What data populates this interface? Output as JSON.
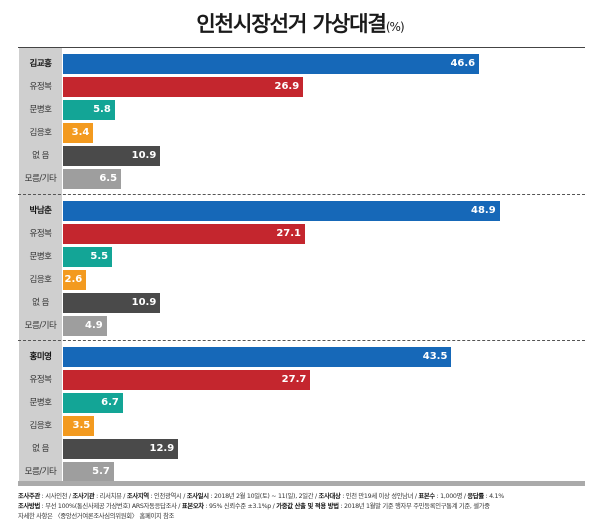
{
  "chart_data": {
    "type": "bar",
    "orientation": "horizontal",
    "title": "인천시장선거 가상대결",
    "unit": "(%)",
    "xlim": [
      0,
      55
    ],
    "grid": false,
    "groups": [
      {
        "categories": [
          "김교흥",
          "유정복",
          "문병호",
          "김응호",
          "없 음",
          "모름/기타"
        ],
        "values": [
          46.6,
          26.9,
          5.8,
          3.4,
          10.9,
          6.5
        ]
      },
      {
        "categories": [
          "박남춘",
          "유정복",
          "문병호",
          "김응호",
          "없 음",
          "모름/기타"
        ],
        "values": [
          48.9,
          27.1,
          5.5,
          2.6,
          10.9,
          4.9
        ]
      },
      {
        "categories": [
          "홍미영",
          "유정복",
          "문병호",
          "김응호",
          "없 음",
          "모름/기타"
        ],
        "values": [
          43.5,
          27.7,
          6.7,
          3.5,
          12.9,
          5.7
        ]
      }
    ],
    "colors": [
      "#1668b8",
      "#c4262e",
      "#13a596",
      "#f39a1f",
      "#4a4a4a",
      "#9e9e9e"
    ]
  },
  "footer": {
    "line1": [
      {
        "k": "조사주관",
        "v": " : 시사인천 / "
      },
      {
        "k": "조사기관",
        "v": " : 리서치뷰 / "
      },
      {
        "k": "조사지역",
        "v": " : 인천광역시 / "
      },
      {
        "k": "조사일시",
        "v": " : 2018년 2월 10일(토) ~ 11(일), 2일간 / "
      },
      {
        "k": "조사대상",
        "v": " : 인천 만19세 이상 성인남녀 / "
      },
      {
        "k": "표본수",
        "v": " : 1,000명 / "
      },
      {
        "k": "응답률",
        "v": " : 4.1%"
      }
    ],
    "line2": [
      {
        "k": "조사방법",
        "v": " : 무선 100%(통신사제공 가상번호) ARS자동응답조사 / "
      },
      {
        "k": "표본오차",
        "v": " : 95% 신뢰수준 ±3.1%p / "
      },
      {
        "k": "가중값 산출 및 적용 방법",
        "v": " : 2018년 1월말 기준 행자부 주민등록인구통계 기준, 셀가중"
      }
    ],
    "line3": "자세한 사항은 〈중앙선거여론조사심의위원회〉 홈페이지 참조"
  }
}
